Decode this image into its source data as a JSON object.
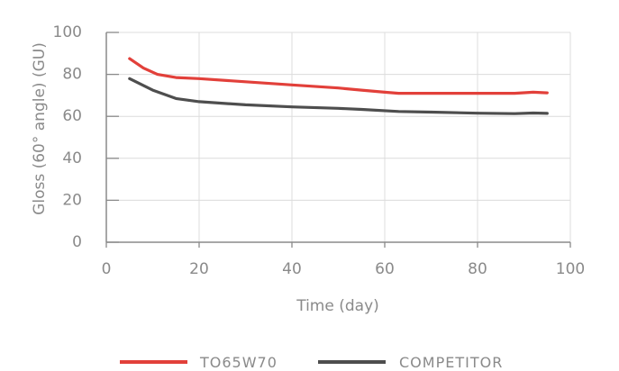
{
  "chart_data": {
    "type": "line",
    "xlabel": "Time (day)",
    "ylabel": "Gloss (60° angle) (GU)",
    "xlim": [
      0,
      100
    ],
    "ylim": [
      0,
      100
    ],
    "xticks": [
      "0",
      "20",
      "40",
      "60",
      "80",
      "100"
    ],
    "yticks": [
      "0",
      "20",
      "40",
      "60",
      "80",
      "100"
    ],
    "grid": true,
    "legend_position": "bottom",
    "series": [
      {
        "name": "TO65W70",
        "color": "#e2403a",
        "x": [
          5,
          8,
          11,
          15,
          20,
          30,
          40,
          50,
          55,
          60,
          63,
          70,
          80,
          88,
          92,
          95
        ],
        "y": [
          87.5,
          83,
          80,
          78.5,
          78,
          76.5,
          75,
          73.5,
          72.5,
          71.5,
          71,
          71,
          71,
          71,
          71.5,
          71.2
        ]
      },
      {
        "name": "COMPETITOR",
        "color": "#4e4e4e",
        "x": [
          5,
          10,
          15,
          20,
          30,
          40,
          50,
          55,
          63,
          70,
          80,
          88,
          92,
          95
        ],
        "y": [
          78,
          72.5,
          68.5,
          67,
          65.5,
          64.5,
          63.8,
          63.3,
          62.3,
          62,
          61.5,
          61.3,
          61.6,
          61.4
        ]
      }
    ]
  }
}
